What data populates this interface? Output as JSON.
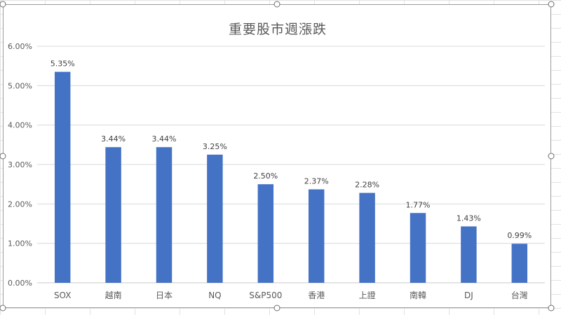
{
  "chart_data": {
    "type": "bar",
    "title": "重要股市週漲跌",
    "xlabel": "",
    "ylabel": "",
    "categories": [
      "SOX",
      "越南",
      "日本",
      "NQ",
      "S&P500",
      "香港",
      "上證",
      "南韓",
      "DJ",
      "台灣"
    ],
    "values": [
      5.35,
      3.44,
      3.44,
      3.25,
      2.5,
      2.37,
      2.28,
      1.77,
      1.43,
      0.99
    ],
    "value_labels": [
      "5.35%",
      "3.44%",
      "3.44%",
      "3.25%",
      "2.50%",
      "2.37%",
      "2.28%",
      "1.77%",
      "1.43%",
      "0.99%"
    ],
    "yticks": [
      0,
      1,
      2,
      3,
      4,
      5,
      6
    ],
    "ytick_labels": [
      "0.00%",
      "1.00%",
      "2.00%",
      "3.00%",
      "4.00%",
      "5.00%",
      "6.00%"
    ],
    "ylim": [
      0,
      6
    ],
    "grid": true,
    "legend": "none",
    "bar_color": "#4472C4"
  }
}
